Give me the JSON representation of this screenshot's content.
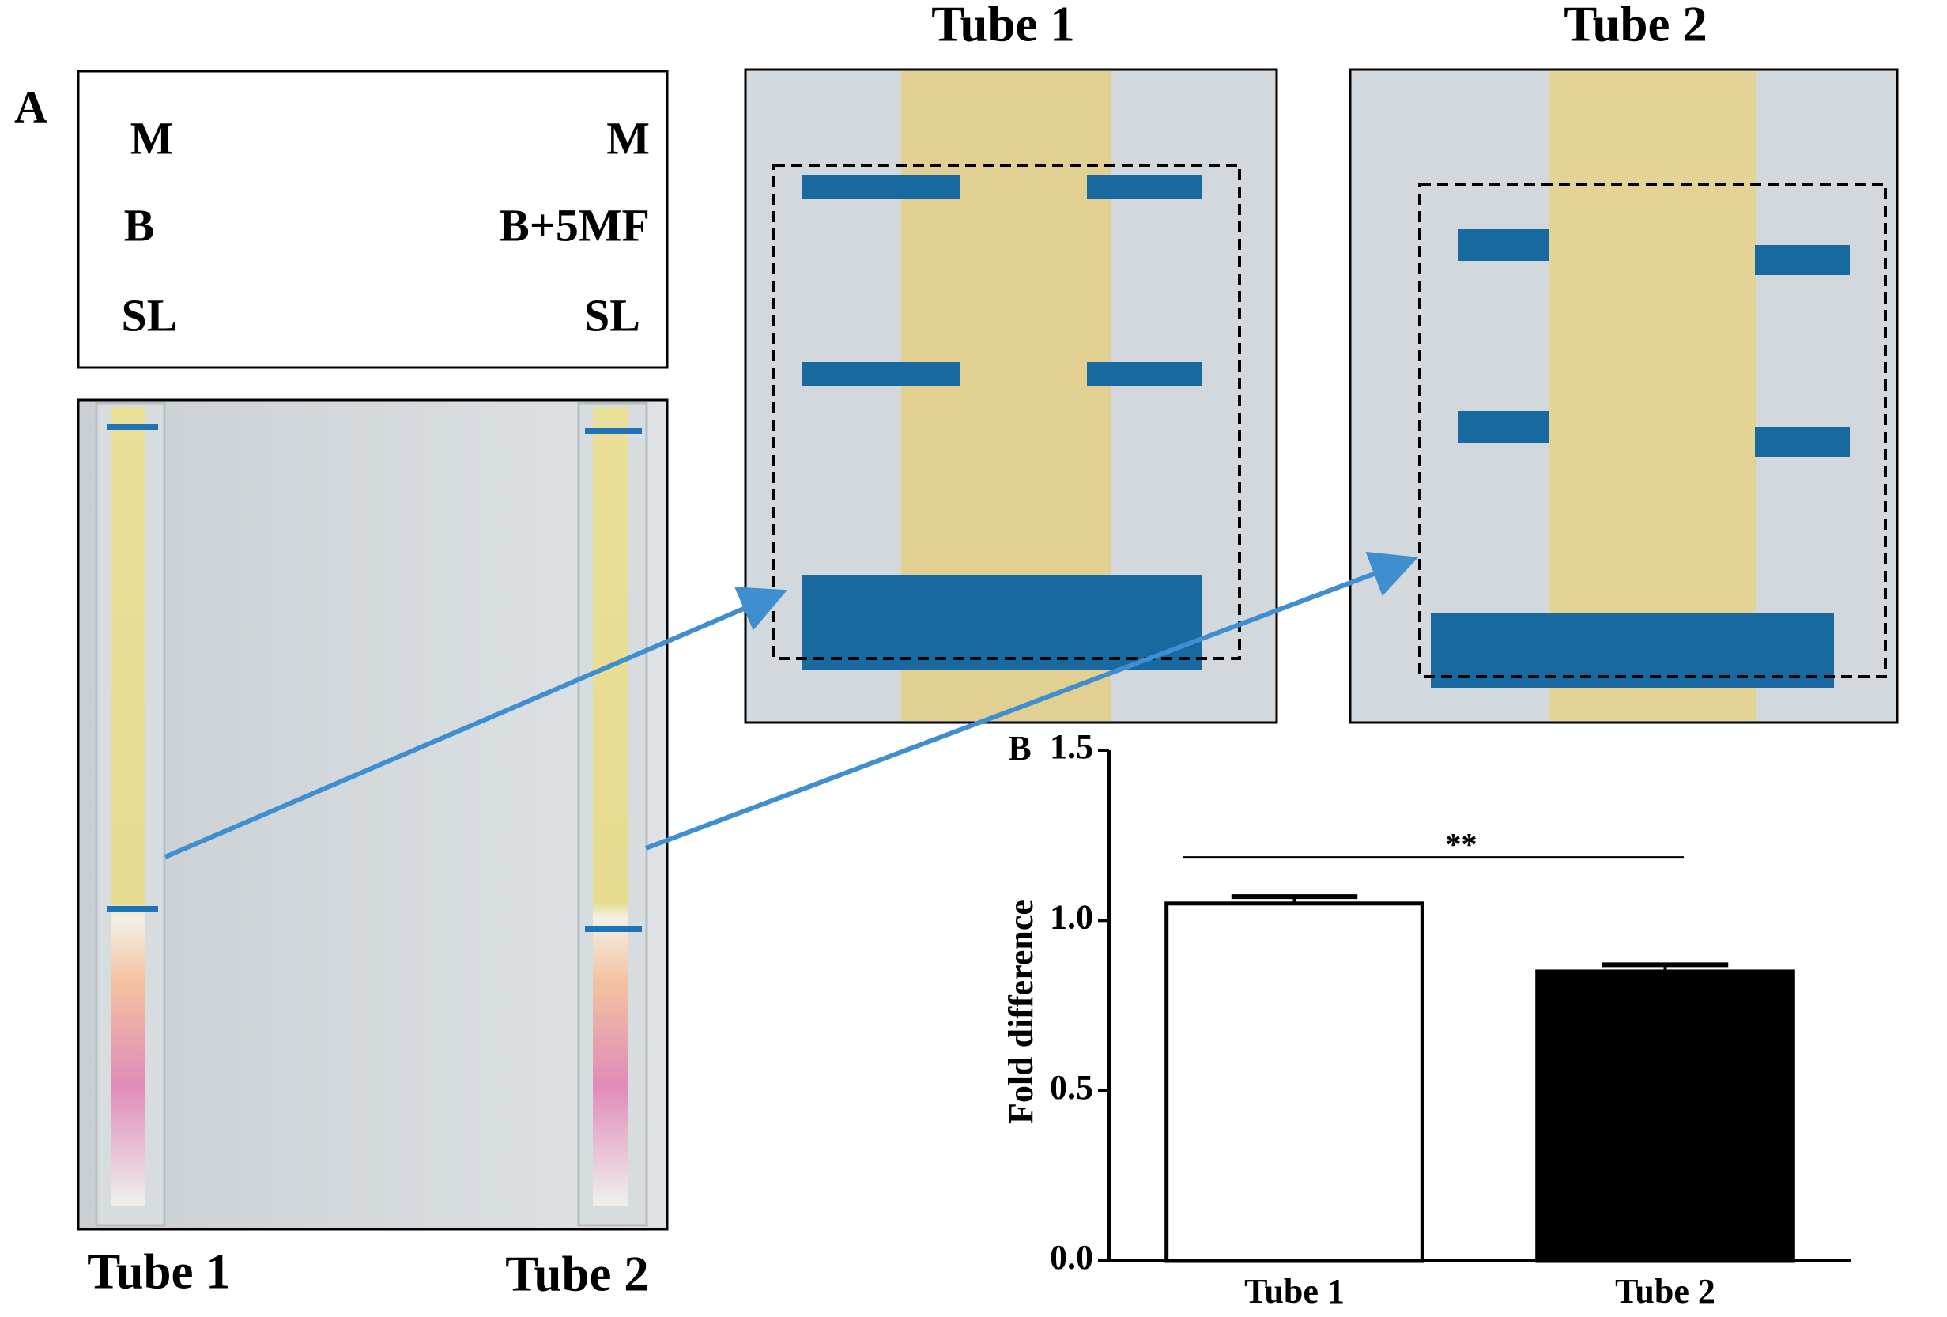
{
  "panel_a": {
    "label": "A",
    "legend": {
      "left": [
        "M",
        "B",
        "SL"
      ],
      "right": [
        "M",
        "B+5MF",
        "SL"
      ]
    },
    "photo_labels": [
      "Tube 1",
      "Tube 2"
    ],
    "zoom_titles": [
      "Tube 1",
      "Tube 2"
    ]
  },
  "chart_data": {
    "type": "bar",
    "panel_label": "B",
    "ylabel": "Fold difference",
    "categories": [
      "Tube 1",
      "Tube 2"
    ],
    "values": [
      1.05,
      0.85
    ],
    "errors": [
      0.02,
      0.02
    ],
    "colors": [
      "#ffffff",
      "#000000"
    ],
    "annotation": "**",
    "ylim": [
      0,
      1.5
    ],
    "yticks": [
      {
        "value": 0,
        "label": "0.0"
      },
      0.5,
      {
        "value": 1,
        "label": "1.0"
      },
      1.5
    ]
  }
}
